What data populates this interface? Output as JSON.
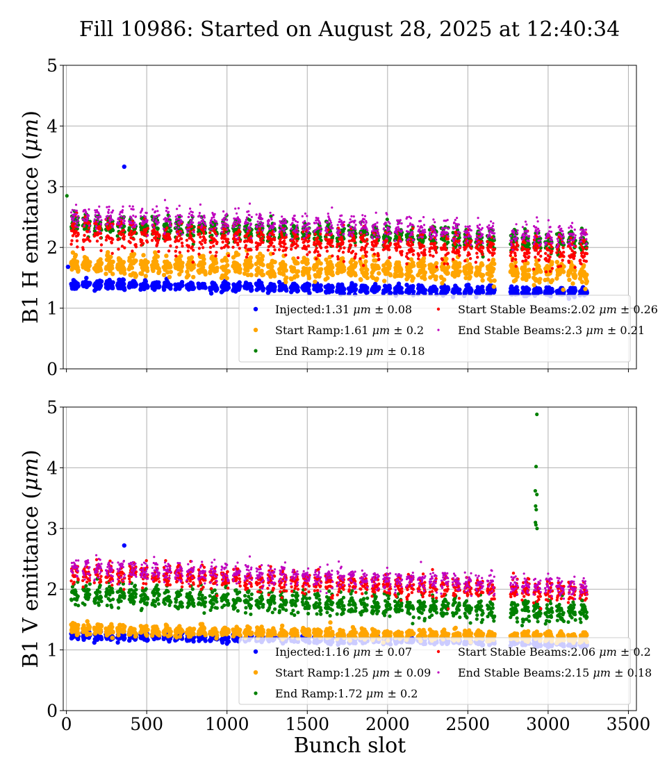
{
  "title": "Fill 10986: Started on August 28, 2025 at 12:40:34",
  "chart_data": [
    {
      "type": "scatter",
      "ylabel": "B1 H emitance ($\\mu m$)",
      "xlabel": "",
      "xlim": [
        -20,
        3550
      ],
      "ylim": [
        0,
        5
      ],
      "xticks": [
        0,
        500,
        1000,
        1500,
        2000,
        2500,
        3000,
        3500
      ],
      "yticks": [
        0,
        1,
        2,
        3,
        4,
        5
      ],
      "show_x_tick_labels": false,
      "grid": true,
      "legend_position": "lower-right",
      "series": [
        {
          "label": "Injected:1.31 $\\mu m$ $\\pm$ 0.08",
          "color": "#0000ff",
          "mean": 1.31,
          "std": 0.08,
          "marker_size": 3.2
        },
        {
          "label": "Start Ramp:1.61 $\\mu m$ $\\pm$ 0.2",
          "color": "#ffa500",
          "mean": 1.61,
          "std": 0.2,
          "marker_size": 3.2
        },
        {
          "label": "End Ramp:2.19 $\\mu m$ $\\pm$ 0.18",
          "color": "#008000",
          "mean": 2.19,
          "std": 0.18,
          "marker_size": 2.6
        },
        {
          "label": "Start Stable Beams:2.02 $\\mu m$ $\\pm$ 0.26",
          "color": "#ff0000",
          "mean": 2.02,
          "std": 0.26,
          "marker_size": 2.2
        },
        {
          "label": "End Stable Beams:2.3 $\\mu m$ $\\pm$ 0.21",
          "color": "#bf00bf",
          "mean": 2.3,
          "std": 0.21,
          "marker_size": 1.6
        }
      ],
      "outliers": [
        {
          "series": 0,
          "x": 360,
          "y": 3.33
        },
        {
          "series": 0,
          "x": 10,
          "y": 1.68
        },
        {
          "series": 2,
          "x": 3,
          "y": 2.85
        }
      ]
    },
    {
      "type": "scatter",
      "ylabel": "B1 V emittance ($\\mu m$)",
      "xlabel": "Bunch slot",
      "xlim": [
        -20,
        3550
      ],
      "ylim": [
        0,
        5
      ],
      "xticks": [
        0,
        500,
        1000,
        1500,
        2000,
        2500,
        3000,
        3500
      ],
      "yticks": [
        0,
        1,
        2,
        3,
        4,
        5
      ],
      "show_x_tick_labels": true,
      "grid": true,
      "legend_position": "lower-right",
      "series": [
        {
          "label": "Injected:1.16 $\\mu m$ $\\pm$ 0.07",
          "color": "#0000ff",
          "mean": 1.16,
          "std": 0.07,
          "marker_size": 3.2
        },
        {
          "label": "Start Ramp:1.25 $\\mu m$ $\\pm$ 0.09",
          "color": "#ffa500",
          "mean": 1.25,
          "std": 0.09,
          "marker_size": 3.2
        },
        {
          "label": "End Ramp:1.72 $\\mu m$ $\\pm$ 0.2",
          "color": "#008000",
          "mean": 1.72,
          "std": 0.2,
          "marker_size": 2.6
        },
        {
          "label": "Start Stable Beams:2.06 $\\mu m$ $\\pm$ 0.2",
          "color": "#ff0000",
          "mean": 2.06,
          "std": 0.2,
          "marker_size": 2.2
        },
        {
          "label": "End Stable Beams:2.15 $\\mu m$ $\\pm$ 0.18",
          "color": "#bf00bf",
          "mean": 2.15,
          "std": 0.18,
          "marker_size": 1.6
        }
      ],
      "outliers": [
        {
          "series": 2,
          "x": 2930,
          "y": 4.88
        },
        {
          "series": 2,
          "x": 2925,
          "y": 4.02
        },
        {
          "series": 2,
          "x": 2920,
          "y": 3.62
        },
        {
          "series": 2,
          "x": 2930,
          "y": 3.56
        },
        {
          "series": 2,
          "x": 2922,
          "y": 3.37
        },
        {
          "series": 2,
          "x": 2926,
          "y": 3.31
        },
        {
          "series": 2,
          "x": 2921,
          "y": 3.1
        },
        {
          "series": 2,
          "x": 2924,
          "y": 3.06
        },
        {
          "series": 2,
          "x": 2931,
          "y": 3.0
        },
        {
          "series": 0,
          "x": 360,
          "y": 2.72
        }
      ]
    }
  ]
}
